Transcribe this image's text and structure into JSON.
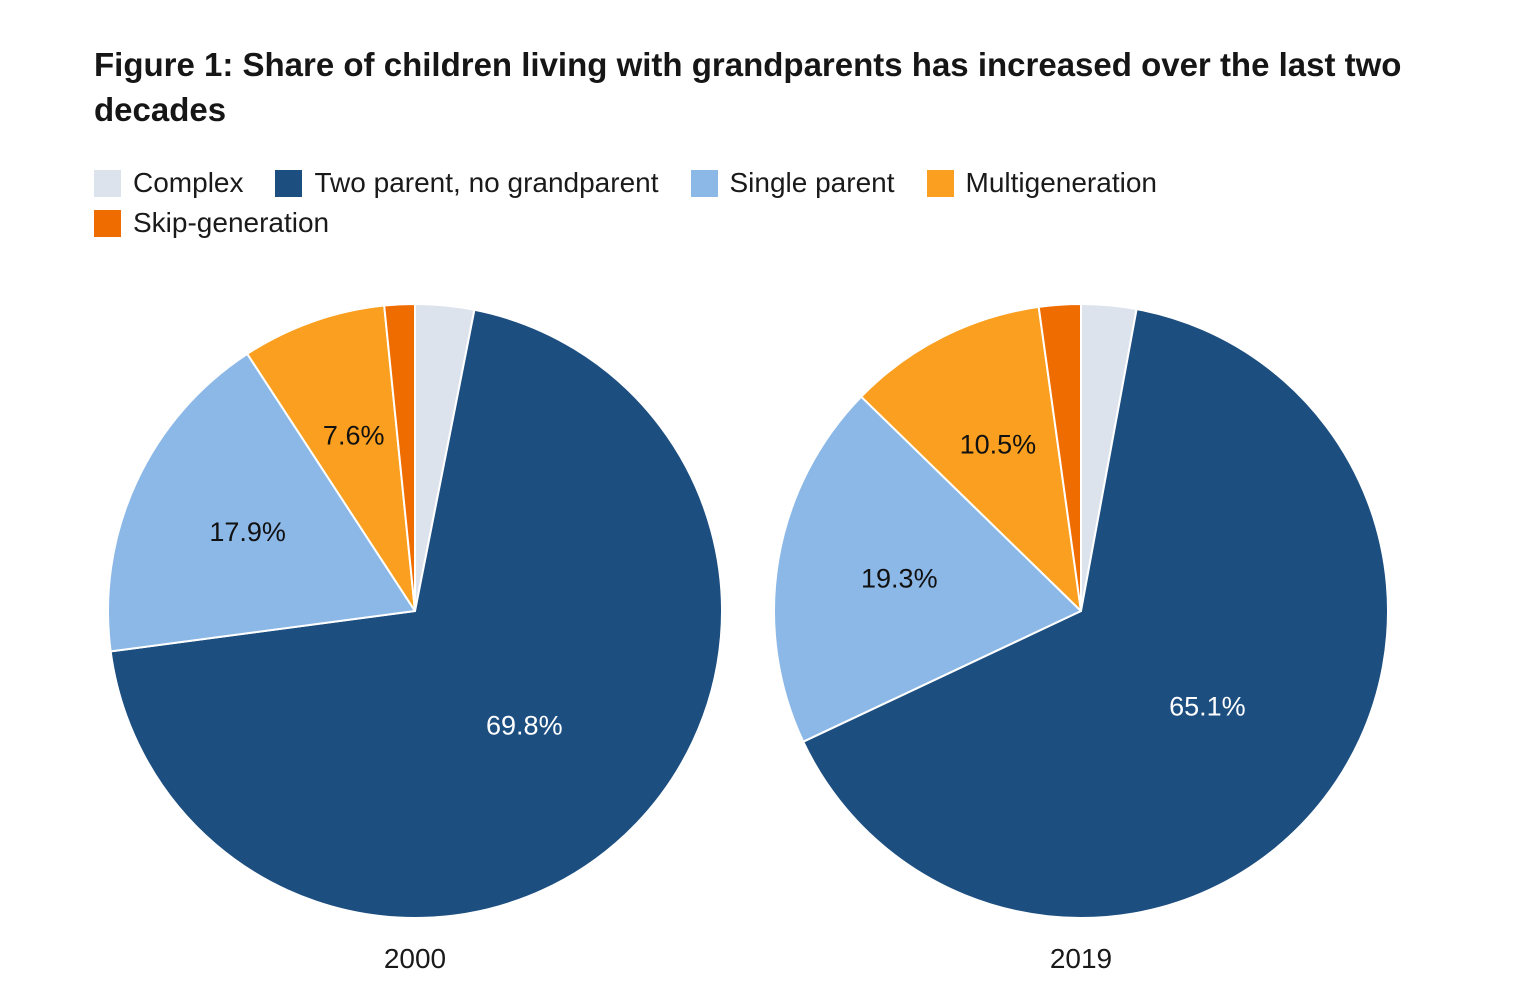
{
  "chart_data": {
    "type": "pie",
    "title": "Figure 1: Share of children living with grandparents has increased over the last two decades",
    "legend": {
      "placement": "top-left",
      "entries": [
        {
          "name": "Complex",
          "color": "#dce3ec"
        },
        {
          "name": "Two parent, no grandparent",
          "color": "#1c4e80"
        },
        {
          "name": "Single parent",
          "color": "#8cb8e7"
        },
        {
          "name": "Multigeneration",
          "color": "#fa9f1f"
        },
        {
          "name": "Skip-generation",
          "color": "#ef6c00"
        }
      ]
    },
    "charts": [
      {
        "year": "2000",
        "slices": [
          {
            "name": "Complex",
            "value": 3.1,
            "label": ""
          },
          {
            "name": "Two parent, no grandparent",
            "value": 69.8,
            "label": "69.8%"
          },
          {
            "name": "Single parent",
            "value": 17.9,
            "label": "17.9%"
          },
          {
            "name": "Multigeneration",
            "value": 7.6,
            "label": "7.6%"
          },
          {
            "name": "Skip-generation",
            "value": 1.6,
            "label": ""
          }
        ]
      },
      {
        "year": "2019",
        "slices": [
          {
            "name": "Complex",
            "value": 2.9,
            "label": ""
          },
          {
            "name": "Two parent, no grandparent",
            "value": 65.1,
            "label": "65.1%"
          },
          {
            "name": "Single parent",
            "value": 19.3,
            "label": "19.3%"
          },
          {
            "name": "Multigeneration",
            "value": 10.5,
            "label": "10.5%"
          },
          {
            "name": "Skip-generation",
            "value": 2.2,
            "label": ""
          }
        ]
      }
    ]
  }
}
